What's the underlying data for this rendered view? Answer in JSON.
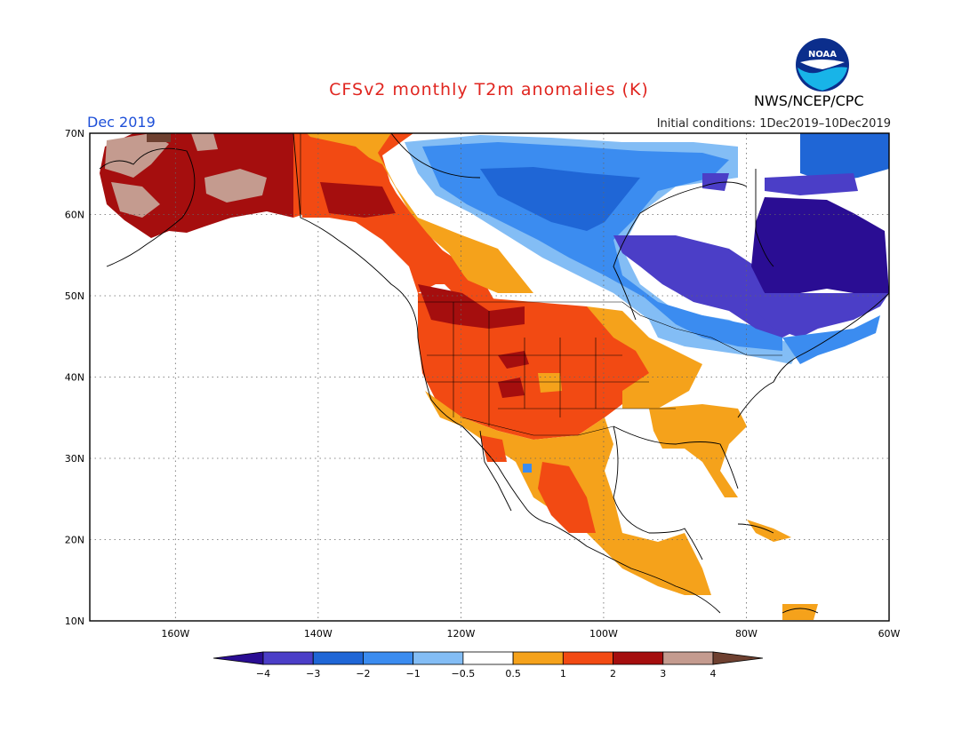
{
  "header": {
    "title": "CFSv2 monthly T2m anomalies (K)",
    "month": "Dec 2019",
    "initial_conditions": "Initial conditions: 1Dec2019–10Dec2019",
    "agency": "NWS/NCEP/CPC",
    "logo_text": "NOAA"
  },
  "map": {
    "lon_range": [
      -172,
      -60
    ],
    "lat_range": [
      10,
      70
    ],
    "lat_labels": [
      "70N",
      "60N",
      "50N",
      "40N",
      "30N",
      "20N",
      "10N"
    ],
    "lon_labels": [
      "160W",
      "140W",
      "120W",
      "100W",
      "80W",
      "60W"
    ],
    "grid": true,
    "colors": {
      "lt_-4": "#2a0d93",
      "-4_-3": "#4b3ec7",
      "-3_-2": "#1f66d6",
      "-2_-1": "#3b8cf0",
      "-1_-0.5": "#83bdf5",
      "-0.5_0.5": "#ffffff",
      "0.5_1": "#f5a21b",
      "1_2": "#f24a13",
      "2_3": "#a50e0e",
      "3_4": "#c49b8f",
      "gt_4": "#6e4030"
    }
  },
  "colorbar": {
    "labels": [
      "−4",
      "−3",
      "−2",
      "−1",
      "−0.5",
      "0.5",
      "1",
      "2",
      "3",
      "4"
    ],
    "colors": [
      "#2a0d93",
      "#4b3ec7",
      "#1f66d6",
      "#3b8cf0",
      "#83bdf5",
      "#ffffff",
      "#f5a21b",
      "#f24a13",
      "#a50e0e",
      "#c49b8f",
      "#6e4030"
    ]
  }
}
